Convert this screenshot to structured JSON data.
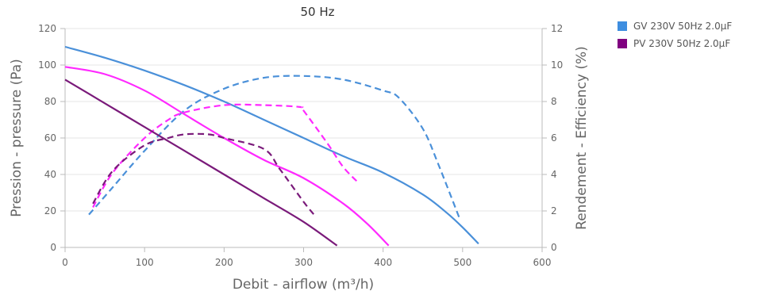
{
  "chart_data": {
    "type": "line",
    "title": "50 Hz",
    "xlabel": "Debit - airflow (m³/h)",
    "ylabel": "Pression - pressure (Pa)",
    "y2label": "Rendement - Efficiency (%)",
    "xlim": [
      0,
      600
    ],
    "ylim": [
      0,
      120
    ],
    "y2lim": [
      0,
      12
    ],
    "xticks": [
      0,
      100,
      200,
      300,
      400,
      500,
      600
    ],
    "yticks": [
      0,
      20,
      40,
      60,
      80,
      100,
      120
    ],
    "y2ticks": [
      0,
      2,
      4,
      6,
      8,
      10,
      12
    ],
    "grid": true,
    "legend_position": "top-right",
    "legend": [
      {
        "name": "GV 230V 50Hz 2.0µF",
        "color": "#3e8ee0"
      },
      {
        "name": "PV 230V 50Hz 2.0µF",
        "color": "#800080"
      }
    ],
    "series": [
      {
        "group": "GV 230V 50Hz 2.0µF",
        "kind": "pressure",
        "axis": "left",
        "color": "#4a90d9",
        "dashed": false,
        "x": [
          0,
          50,
          100,
          150,
          200,
          250,
          300,
          350,
          400,
          450,
          480,
          500,
          520
        ],
        "y": [
          110,
          104,
          97,
          89,
          80,
          70,
          60,
          50,
          41,
          29,
          19,
          11,
          2
        ]
      },
      {
        "group": "GV 230V 50Hz 2.0µF",
        "kind": "efficiency",
        "axis": "right",
        "color": "#4a90d9",
        "dashed": true,
        "x": [
          30,
          60,
          100,
          150,
          200,
          250,
          300,
          350,
          400,
          420,
          450,
          470,
          497
        ],
        "y": [
          1.8,
          3.3,
          5.3,
          7.5,
          8.7,
          9.3,
          9.4,
          9.2,
          8.6,
          8.2,
          6.5,
          4.5,
          1.5
        ]
      },
      {
        "group": "PV 230V 50Hz 2.0µF",
        "kind": "pressure",
        "axis": "left",
        "color": "#ff29ff",
        "dashed": false,
        "x": [
          0,
          50,
          100,
          150,
          200,
          250,
          300,
          350,
          380,
          407
        ],
        "y": [
          99,
          95,
          86,
          73,
          60,
          48,
          38,
          24,
          13,
          1
        ]
      },
      {
        "group": "PV 230V 50Hz 2.0µF",
        "kind": "efficiency",
        "axis": "right",
        "color": "#ff29ff",
        "dashed": true,
        "x": [
          35,
          60,
          100,
          130,
          150,
          200,
          250,
          295,
          300,
          330,
          350,
          370
        ],
        "y": [
          2.2,
          4.1,
          6.0,
          7.0,
          7.4,
          7.8,
          7.8,
          7.7,
          7.5,
          5.7,
          4.4,
          3.5
        ]
      },
      {
        "group": "PV 230V 50Hz 2.0µF",
        "kind": "pressure",
        "axis": "left",
        "color": "#7a1a7a",
        "dashed": false,
        "x": [
          0,
          50,
          100,
          150,
          200,
          250,
          300,
          342
        ],
        "y": [
          92,
          79,
          66,
          53,
          40,
          27,
          14,
          1
        ]
      },
      {
        "group": "PV 230V 50Hz 2.0µF",
        "kind": "efficiency",
        "axis": "right",
        "color": "#7a1a7a",
        "dashed": true,
        "x": [
          35,
          60,
          100,
          130,
          150,
          180,
          200,
          250,
          270,
          300,
          315
        ],
        "y": [
          2.4,
          4.2,
          5.6,
          6.0,
          6.2,
          6.2,
          6.0,
          5.4,
          4.3,
          2.5,
          1.7
        ]
      }
    ]
  }
}
